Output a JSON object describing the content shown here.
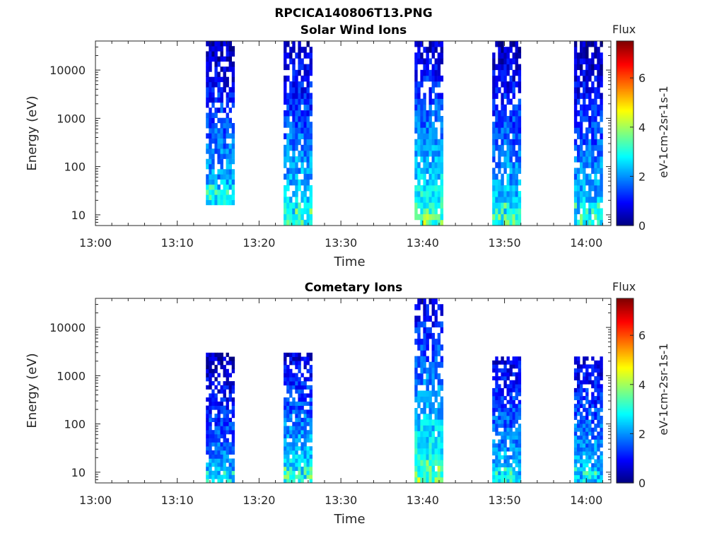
{
  "figure": {
    "title": "RPCICA140806T13.PNG"
  },
  "colors": {
    "colormap": [
      "#00007f",
      "#0000ff",
      "#007fff",
      "#00ffff",
      "#7fff7f",
      "#ffff00",
      "#ff7f00",
      "#ff0000",
      "#7f0000"
    ]
  },
  "chart_data": [
    {
      "type": "heatmap",
      "title": "Solar Wind Ions",
      "xlabel": "Time",
      "ylabel": "Energy (eV)",
      "yscale": "log",
      "ylim": [
        6,
        40000
      ],
      "yticks": [
        10,
        100,
        1000,
        10000
      ],
      "ytick_labels": [
        "10",
        "100",
        "1000",
        "10000"
      ],
      "xlim": [
        "13:00",
        "14:03"
      ],
      "xticks": [
        "13:00",
        "13:10",
        "13:20",
        "13:30",
        "13:40",
        "13:50",
        "14:00"
      ],
      "colorbar": {
        "label": "Flux",
        "axis_label": "eV-1cm-2sr-1s-1",
        "range": [
          0,
          7.5
        ],
        "ticks": [
          0,
          2,
          4,
          6
        ]
      },
      "scan_blocks": [
        {
          "start": "13:13.5",
          "end": "13:17.0",
          "emin": 16,
          "emax": 40000,
          "flux_low_energy": 2.5,
          "flux_high_energy": 0.4
        },
        {
          "start": "13:23.0",
          "end": "13:26.5",
          "emin": 6,
          "emax": 40000,
          "flux_low_energy": 2.8,
          "flux_high_energy": 0.5
        },
        {
          "start": "13:39.0",
          "end": "13:42.5",
          "emin": 6,
          "emax": 40000,
          "flux_low_energy": 3.2,
          "flux_high_energy": 0.6
        },
        {
          "start": "13:48.5",
          "end": "13:52.0",
          "emin": 6,
          "emax": 40000,
          "flux_low_energy": 2.7,
          "flux_high_energy": 0.4
        },
        {
          "start": "13:58.5",
          "end": "14:02.0",
          "emin": 6,
          "emax": 40000,
          "flux_low_energy": 2.6,
          "flux_high_energy": 0.3
        }
      ]
    },
    {
      "type": "heatmap",
      "title": "Cometary Ions",
      "xlabel": "Time",
      "ylabel": "Energy (eV)",
      "yscale": "log",
      "ylim": [
        6,
        40000
      ],
      "yticks": [
        10,
        100,
        1000,
        10000
      ],
      "ytick_labels": [
        "10",
        "100",
        "1000",
        "10000"
      ],
      "xlim": [
        "13:00",
        "14:03"
      ],
      "xticks": [
        "13:00",
        "13:10",
        "13:20",
        "13:30",
        "13:40",
        "13:50",
        "14:00"
      ],
      "colorbar": {
        "label": "Flux",
        "axis_label": "eV-1cm-2sr-1s-1",
        "range": [
          0,
          7.5
        ],
        "ticks": [
          0,
          2,
          4,
          6
        ]
      },
      "scan_blocks": [
        {
          "start": "13:13.5",
          "end": "13:17.0",
          "emin": 6,
          "emax": 3000,
          "flux_low_energy": 2.2,
          "flux_high_energy": 0.3
        },
        {
          "start": "13:23.0",
          "end": "13:26.5",
          "emin": 6,
          "emax": 3000,
          "flux_low_energy": 2.8,
          "flux_high_energy": 0.7
        },
        {
          "start": "13:39.0",
          "end": "13:42.5",
          "emin": 6,
          "emax": 40000,
          "flux_low_energy": 3.2,
          "flux_high_energy": 0.8
        },
        {
          "start": "13:48.5",
          "end": "13:52.0",
          "emin": 6,
          "emax": 2500,
          "flux_low_energy": 2.5,
          "flux_high_energy": 0.7
        },
        {
          "start": "13:58.5",
          "end": "14:02.0",
          "emin": 6,
          "emax": 2500,
          "flux_low_energy": 2.4,
          "flux_high_energy": 0.7
        }
      ]
    }
  ]
}
